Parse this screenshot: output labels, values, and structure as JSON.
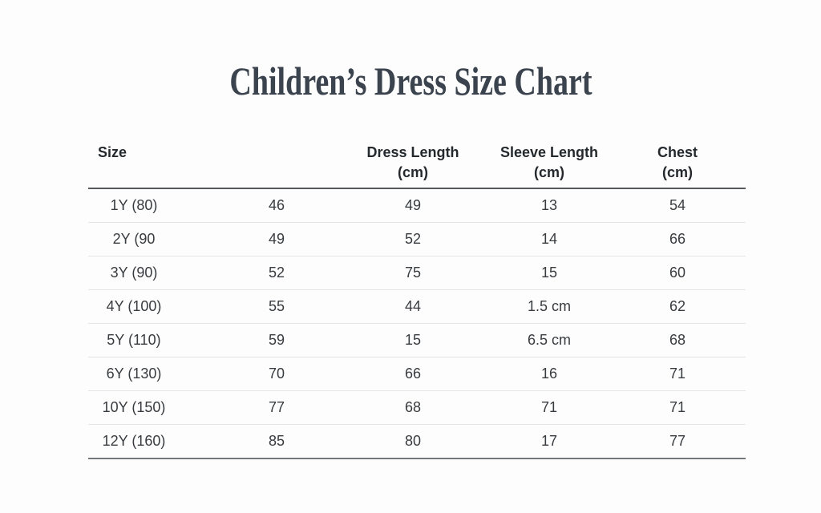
{
  "page": {
    "background": "#fdfdfd",
    "title_color": "#3a434e",
    "header_rule_color": "#56595c",
    "row_rule_color": "#e4e5e7",
    "bottom_rule_color": "#75787b"
  },
  "chart_data": {
    "type": "table",
    "title": "Children’s Dress Size Chart",
    "columns": [
      "Size",
      "",
      "Dress Length\n(cm)",
      "Sleeve Length\n(cm)",
      "Chest\n(cm)"
    ],
    "rows": [
      [
        "1Y (80)",
        "46",
        "49",
        "13",
        "54"
      ],
      [
        "2Y (90",
        "49",
        "52",
        "14",
        "66"
      ],
      [
        "3Y (90)",
        "52",
        "75",
        "15",
        "60"
      ],
      [
        "4Y (100)",
        "55",
        "44",
        "1.5 cm",
        "62"
      ],
      [
        "5Y (110)",
        "59",
        "15",
        "6.5 cm",
        "68"
      ],
      [
        "6Y (130)",
        "70",
        "66",
        "16",
        "71"
      ],
      [
        "10Y (150)",
        "77",
        "68",
        "71",
        "71"
      ],
      [
        "12Y (160)",
        "85",
        "80",
        "17",
        "77"
      ]
    ]
  }
}
